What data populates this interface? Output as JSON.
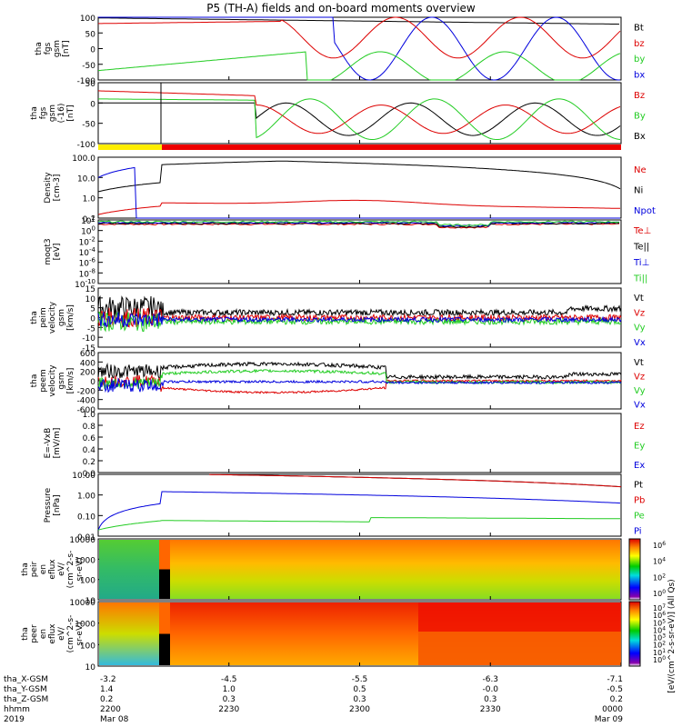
{
  "title": "P5 (TH-A) fields and on-board moments overview",
  "colors": {
    "black": "#000000",
    "red": "#dd0000",
    "green": "#22cc22",
    "blue": "#0000dd",
    "yellow": "#ffee00"
  },
  "chart_data": [
    {
      "type": "line",
      "ylabel": [
        "tha",
        "fgs",
        "gsm",
        "[nT]"
      ],
      "ylim": [
        -100,
        100
      ],
      "yticks": [
        "100",
        "50",
        "0",
        "-50",
        "-100"
      ],
      "legend": [
        {
          "name": "Bt",
          "color": "black"
        },
        {
          "name": "bz",
          "color": "red"
        },
        {
          "name": "by",
          "color": "green"
        },
        {
          "name": "bx",
          "color": "blue"
        }
      ]
    },
    {
      "type": "line",
      "ylabel": [
        "tha",
        "fgs",
        "gsm",
        "(-16)",
        "[nT]"
      ],
      "ylim": [
        -100,
        50
      ],
      "yticks": [
        "50",
        "0",
        "-50",
        "-100"
      ],
      "legend": [
        {
          "name": "Bz",
          "color": "red"
        },
        {
          "name": "By",
          "color": "green"
        },
        {
          "name": "Bx",
          "color": "black"
        }
      ]
    },
    {
      "type": "line",
      "ylabel": [
        "Density",
        "[cm-3]"
      ],
      "scale": "log",
      "ylim": [
        0.1,
        100
      ],
      "yticks": [
        "100.0",
        "10.0",
        "1.0",
        "0.1"
      ],
      "legend": [
        {
          "name": "Ne",
          "color": "red"
        },
        {
          "name": "Ni",
          "color": "black"
        },
        {
          "name": "Npot",
          "color": "blue"
        }
      ]
    },
    {
      "type": "line",
      "ylabel": [
        "moqt3",
        "[eV]"
      ],
      "scale": "log",
      "yticks": [
        "10^2",
        "10^0",
        "10^-2",
        "10^-4",
        "10^-6",
        "10^-8",
        "10^-10"
      ],
      "legend": [
        {
          "name": "Te⊥",
          "color": "red"
        },
        {
          "name": "Te||",
          "color": "black"
        },
        {
          "name": "Ti⊥",
          "color": "blue"
        },
        {
          "name": "Ti||",
          "color": "green"
        }
      ]
    },
    {
      "type": "line",
      "ylabel": [
        "tha",
        "peim",
        "velocity",
        "gsm",
        "[km/s]"
      ],
      "ylim": [
        -15,
        15
      ],
      "yticks": [
        "15",
        "10",
        "5",
        "0",
        "-5",
        "-10",
        "-15"
      ],
      "legend": [
        {
          "name": "Vt",
          "color": "black"
        },
        {
          "name": "Vz",
          "color": "red"
        },
        {
          "name": "Vy",
          "color": "green"
        },
        {
          "name": "Vx",
          "color": "blue"
        }
      ]
    },
    {
      "type": "line",
      "ylabel": [
        "tha",
        "peem",
        "velocity",
        "gsm",
        "[km/s]"
      ],
      "ylim": [
        -600,
        600
      ],
      "yticks": [
        "600",
        "400",
        "200",
        "0",
        "-200",
        "-400",
        "-600"
      ],
      "legend": [
        {
          "name": "Vt",
          "color": "black"
        },
        {
          "name": "Vz",
          "color": "red"
        },
        {
          "name": "Vy",
          "color": "green"
        },
        {
          "name": "Vx",
          "color": "blue"
        }
      ]
    },
    {
      "type": "line",
      "ylabel": [
        "E=-VxB",
        "[mV/m]"
      ],
      "ylim": [
        0,
        1
      ],
      "yticks": [
        "1.0",
        "0.8",
        "0.6",
        "0.4",
        "0.2",
        "0.0"
      ],
      "legend": [
        {
          "name": "Ez",
          "color": "red"
        },
        {
          "name": "Ey",
          "color": "green"
        },
        {
          "name": "Ex",
          "color": "blue"
        }
      ]
    },
    {
      "type": "line",
      "ylabel": [
        "Pressure",
        "[nPa]"
      ],
      "scale": "log",
      "yticks": [
        "10.00",
        "1.00",
        "0.10",
        "0.01"
      ],
      "legend": [
        {
          "name": "Pt",
          "color": "black"
        },
        {
          "name": "Pb",
          "color": "red"
        },
        {
          "name": "Pe",
          "color": "green"
        },
        {
          "name": "Pi",
          "color": "blue"
        }
      ]
    },
    {
      "type": "heatmap",
      "ylabel": [
        "tha",
        "peir",
        "en",
        "eflux",
        "eV/",
        "(cm^2-s-",
        "sr-eV)"
      ],
      "scale": "log",
      "yticks": [
        "10000",
        "1000",
        "100",
        "10"
      ],
      "colorbar": {
        "ticks": [
          "10^6",
          "10^4",
          "10^2",
          "10^0"
        ]
      }
    },
    {
      "type": "heatmap",
      "ylabel": [
        "tha",
        "peer",
        "en",
        "eflux",
        "eV/",
        "(cm^2-s-",
        "sr-eV)"
      ],
      "scale": "log",
      "yticks": [
        "10000",
        "1000",
        "100",
        "10"
      ],
      "colorbar": {
        "ticks": [
          "10^7",
          "10^6",
          "10^5",
          "10^4",
          "10^3",
          "10^2",
          "10^1",
          "10^0"
        ]
      }
    }
  ],
  "colorbar_label": "[eV/(cm^2-s-sr-eV)] (All Qs)",
  "xaxis": {
    "ticks": [
      {
        "x": "-3.2",
        "y": "1.4",
        "z": "0.2",
        "t": "2200",
        "d": "Mar 08"
      },
      {
        "x": "-4.5",
        "y": "1.0",
        "z": "0.3",
        "t": "2230",
        "d": ""
      },
      {
        "x": "-5.5",
        "y": "0.5",
        "z": "0.3",
        "t": "2300",
        "d": ""
      },
      {
        "x": "-6.3",
        "y": "-0.0",
        "z": "0.3",
        "t": "2330",
        "d": ""
      },
      {
        "x": "-7.1",
        "y": "-0.5",
        "z": "0.2",
        "t": "0000",
        "d": "Mar 09"
      }
    ],
    "row_labels": [
      "tha_X-GSM",
      "tha_Y-GSM",
      "tha_Z-GSM",
      "hhmm",
      "2019"
    ]
  }
}
